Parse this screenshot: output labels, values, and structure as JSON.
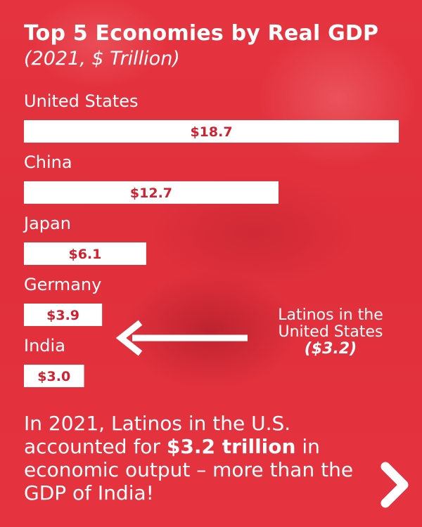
{
  "header": {
    "title": "Top 5 Economies by Real GDP",
    "subtitle": "(2021, $ Trillion)"
  },
  "chart_data": {
    "type": "bar",
    "orientation": "horizontal",
    "title": "Top 5 Economies by Real GDP",
    "subtitle": "(2021, $ Trillion)",
    "categories": [
      "United States",
      "China",
      "Japan",
      "Germany",
      "India"
    ],
    "values": [
      18.7,
      12.7,
      6.1,
      3.9,
      3.0
    ],
    "data_labels": [
      "$18.7",
      "$12.7",
      "$6.1",
      "$3.9",
      "$3.0"
    ],
    "bar_color": "#ffffff",
    "label_color": "#d1202f"
  },
  "annotation": {
    "line1": "Latinos in the",
    "line2": "United States",
    "value": "($3.2)"
  },
  "footer": {
    "part1": "In 2021, Latinos in the U.S. accounted for ",
    "highlight": "$3.2 trillion",
    "part2": " in economic output – more than the GDP of India!"
  },
  "nav": {
    "next_icon": "chevron-right-icon"
  },
  "colors": {
    "background": "#e8323f",
    "bar": "#ffffff",
    "value_text": "#d1202f"
  }
}
